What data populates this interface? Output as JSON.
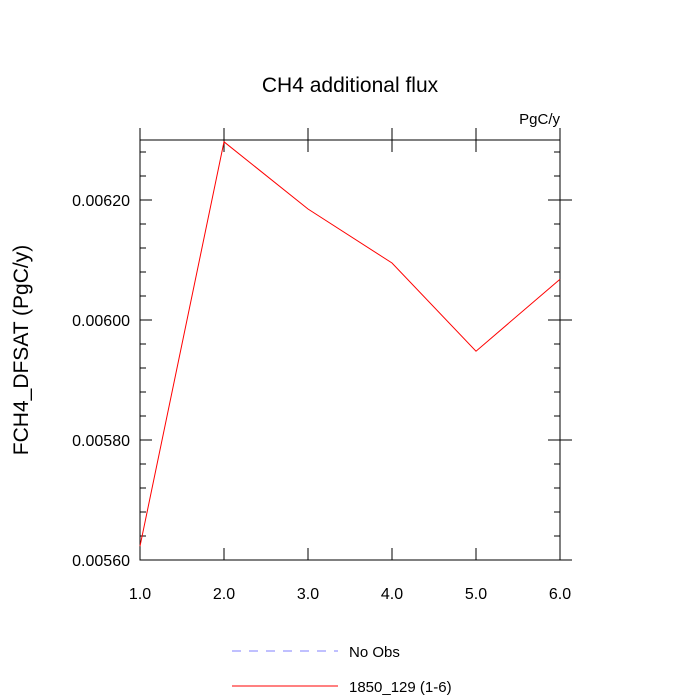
{
  "chart_data": {
    "type": "line",
    "title": "CH4 additional flux",
    "units": "PgC/y",
    "ylabel": "FCH4_DFSAT  (PgC/y)",
    "xlabel": "",
    "xlim": [
      1.0,
      6.0
    ],
    "ylim": [
      0.0056,
      0.0063
    ],
    "x_ticks": [
      1.0,
      2.0,
      3.0,
      4.0,
      5.0,
      6.0
    ],
    "x_tick_labels": [
      "1.0",
      "2.0",
      "3.0",
      "4.0",
      "5.0",
      "6.0"
    ],
    "y_ticks": [
      0.0056,
      0.0058,
      0.006,
      0.0062
    ],
    "y_tick_labels": [
      "0.00560",
      "0.00580",
      "0.00600",
      "0.00620"
    ],
    "grid": false,
    "legend_position": "bottom",
    "series": [
      {
        "name": "1850_129 (1-6)",
        "color": "#ff0000",
        "style": "solid",
        "x": [
          1.0,
          2.0,
          3.0,
          4.0,
          5.0,
          6.0
        ],
        "values": [
          0.005623,
          0.006297,
          0.006185,
          0.006095,
          0.005948,
          0.006068
        ]
      }
    ],
    "legend": [
      {
        "label": "No Obs",
        "color": "#8080ff",
        "style": "dashed"
      },
      {
        "label": "1850_129 (1-6)",
        "color": "#ff0000",
        "style": "solid"
      }
    ]
  }
}
